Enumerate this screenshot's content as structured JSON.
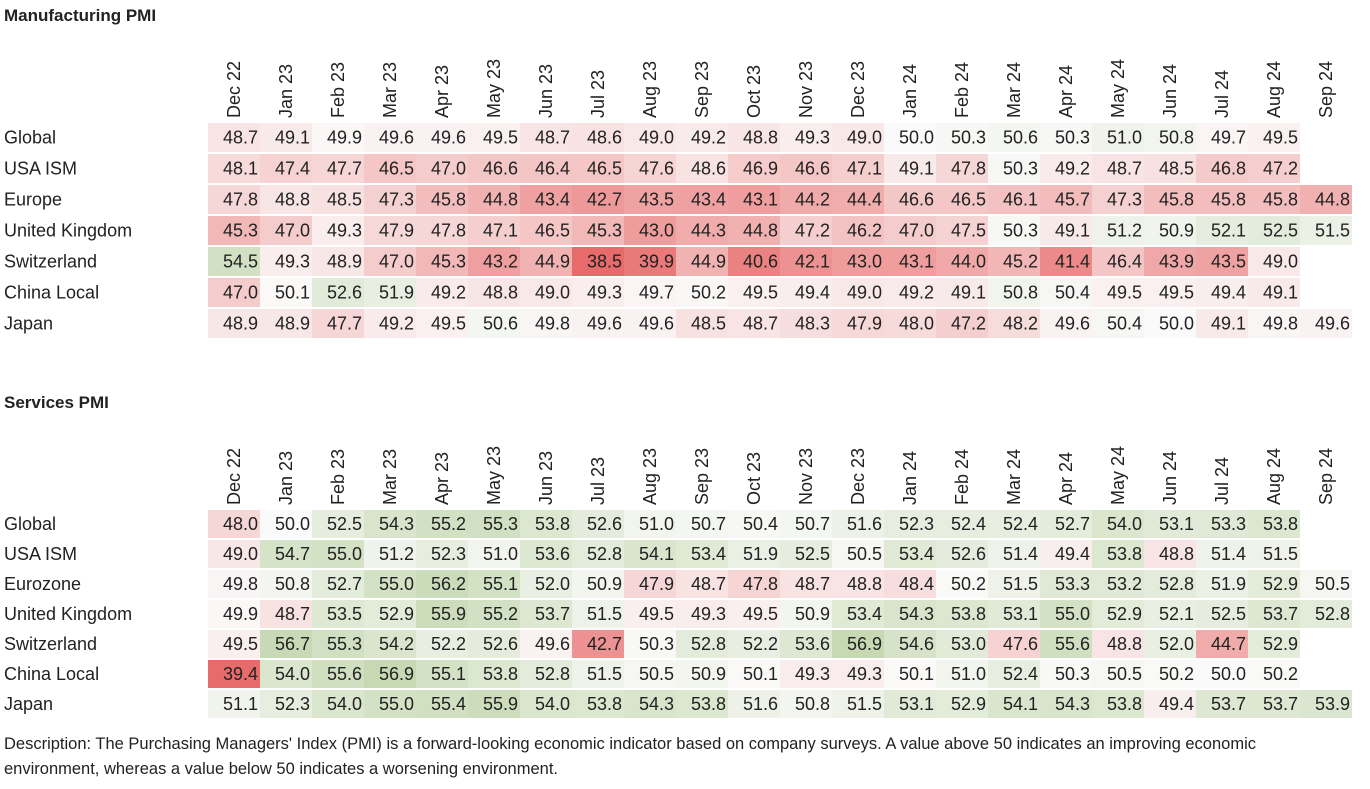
{
  "chart_data": [
    {
      "type": "heatmap",
      "title": "Manufacturing PMI",
      "months": [
        "Dec 22",
        "Jan 23",
        "Feb 23",
        "Mar 23",
        "Apr 23",
        "May 23",
        "Jun 23",
        "Jul 23",
        "Aug 23",
        "Sep 23",
        "Oct 23",
        "Nov 23",
        "Dec 23",
        "Jan 24",
        "Feb 24",
        "Mar 24",
        "Apr 24",
        "May 24",
        "Jun 24",
        "Jul 24",
        "Aug 24",
        "Sep 24"
      ],
      "rows": [
        {
          "name": "Global",
          "values": [
            48.7,
            49.1,
            49.9,
            49.6,
            49.6,
            49.5,
            48.7,
            48.6,
            49.0,
            49.2,
            48.8,
            49.3,
            49.0,
            50.0,
            50.3,
            50.6,
            50.3,
            51.0,
            50.8,
            49.7,
            49.5,
            null
          ]
        },
        {
          "name": "USA ISM",
          "values": [
            48.1,
            47.4,
            47.7,
            46.5,
            47.0,
            46.6,
            46.4,
            46.5,
            47.6,
            48.6,
            46.9,
            46.6,
            47.1,
            49.1,
            47.8,
            50.3,
            49.2,
            48.7,
            48.5,
            46.8,
            47.2,
            null
          ]
        },
        {
          "name": "Europe",
          "values": [
            47.8,
            48.8,
            48.5,
            47.3,
            45.8,
            44.8,
            43.4,
            42.7,
            43.5,
            43.4,
            43.1,
            44.2,
            44.4,
            46.6,
            46.5,
            46.1,
            45.7,
            47.3,
            45.8,
            45.8,
            45.8,
            44.8
          ]
        },
        {
          "name": "United Kingdom",
          "values": [
            45.3,
            47.0,
            49.3,
            47.9,
            47.8,
            47.1,
            46.5,
            45.3,
            43.0,
            44.3,
            44.8,
            47.2,
            46.2,
            47.0,
            47.5,
            50.3,
            49.1,
            51.2,
            50.9,
            52.1,
            52.5,
            51.5
          ]
        },
        {
          "name": "Switzerland",
          "values": [
            54.5,
            49.3,
            48.9,
            47.0,
            45.3,
            43.2,
            44.9,
            38.5,
            39.9,
            44.9,
            40.6,
            42.1,
            43.0,
            43.1,
            44.0,
            45.2,
            41.4,
            46.4,
            43.9,
            43.5,
            49.0,
            null
          ]
        },
        {
          "name": "China Local",
          "values": [
            47.0,
            50.1,
            52.6,
            51.9,
            49.2,
            48.8,
            49.0,
            49.3,
            49.7,
            50.2,
            49.5,
            49.4,
            49.0,
            49.2,
            49.1,
            50.8,
            50.4,
            49.5,
            49.5,
            49.4,
            49.1,
            null
          ]
        },
        {
          "name": "Japan",
          "values": [
            48.9,
            48.9,
            47.7,
            49.2,
            49.5,
            50.6,
            49.8,
            49.6,
            49.6,
            48.5,
            48.7,
            48.3,
            47.9,
            48.0,
            47.2,
            48.2,
            49.6,
            50.4,
            50.0,
            49.1,
            49.8,
            49.6
          ]
        }
      ]
    },
    {
      "type": "heatmap",
      "title": "Services PMI",
      "months": [
        "Dec 22",
        "Jan 23",
        "Feb 23",
        "Mar 23",
        "Apr 23",
        "May 23",
        "Jun 23",
        "Jul 23",
        "Aug 23",
        "Sep 23",
        "Oct 23",
        "Nov 23",
        "Dec 23",
        "Jan 24",
        "Feb 24",
        "Mar 24",
        "Apr 24",
        "May 24",
        "Jun 24",
        "Jul 24",
        "Aug 24",
        "Sep 24"
      ],
      "rows": [
        {
          "name": "Global",
          "values": [
            48.0,
            50.0,
            52.5,
            54.3,
            55.2,
            55.3,
            53.8,
            52.6,
            51.0,
            50.7,
            50.4,
            50.7,
            51.6,
            52.3,
            52.4,
            52.4,
            52.7,
            54.0,
            53.1,
            53.3,
            53.8,
            null
          ]
        },
        {
          "name": "USA ISM",
          "values": [
            49.0,
            54.7,
            55.0,
            51.2,
            52.3,
            51.0,
            53.6,
            52.8,
            54.1,
            53.4,
            51.9,
            52.5,
            50.5,
            53.4,
            52.6,
            51.4,
            49.4,
            53.8,
            48.8,
            51.4,
            51.5,
            null
          ]
        },
        {
          "name": "Eurozone",
          "values": [
            49.8,
            50.8,
            52.7,
            55.0,
            56.2,
            55.1,
            52.0,
            50.9,
            47.9,
            48.7,
            47.8,
            48.7,
            48.8,
            48.4,
            50.2,
            51.5,
            53.3,
            53.2,
            52.8,
            51.9,
            52.9,
            50.5
          ]
        },
        {
          "name": "United Kingdom",
          "values": [
            49.9,
            48.7,
            53.5,
            52.9,
            55.9,
            55.2,
            53.7,
            51.5,
            49.5,
            49.3,
            49.5,
            50.9,
            53.4,
            54.3,
            53.8,
            53.1,
            55.0,
            52.9,
            52.1,
            52.5,
            53.7,
            52.8
          ]
        },
        {
          "name": "Switzerland",
          "values": [
            49.5,
            56.7,
            55.3,
            54.2,
            52.2,
            52.6,
            49.6,
            42.7,
            50.3,
            52.8,
            52.2,
            53.6,
            56.9,
            54.6,
            53.0,
            47.6,
            55.6,
            48.8,
            52.0,
            44.7,
            52.9,
            null
          ]
        },
        {
          "name": "China Local",
          "values": [
            39.4,
            54.0,
            55.6,
            56.9,
            55.1,
            53.8,
            52.8,
            51.5,
            50.5,
            50.9,
            50.1,
            49.3,
            49.3,
            50.1,
            51.0,
            52.4,
            50.3,
            50.5,
            50.2,
            50.0,
            50.2,
            null
          ]
        },
        {
          "name": "Japan",
          "values": [
            51.1,
            52.3,
            54.0,
            55.0,
            55.4,
            55.9,
            54.0,
            53.8,
            54.3,
            53.8,
            51.6,
            50.8,
            51.5,
            53.1,
            52.9,
            54.1,
            54.3,
            53.8,
            49.4,
            53.7,
            53.7,
            53.9
          ]
        }
      ]
    }
  ],
  "description": "Description: The Purchasing Managers' Index (PMI) is a forward-looking economic indicator based on company surveys. A value above 50 indicates an improving economic environment, whereas a value below 50 indicates a worsening environment.",
  "colors": {
    "low": "#e86b6b",
    "neutral": "#fbfafa",
    "high": "#c6d9b3"
  }
}
